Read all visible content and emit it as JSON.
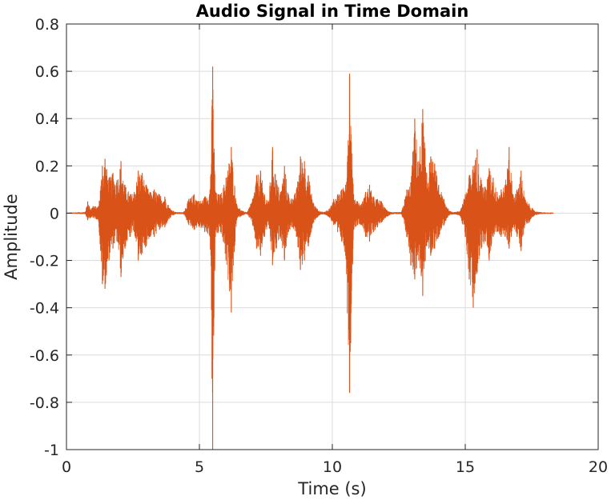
{
  "chart_data": {
    "type": "line",
    "title": "Audio Signal in Time Domain",
    "xlabel": "Time (s)",
    "ylabel": "Amplitude",
    "xlim": [
      0,
      20
    ],
    "ylim": [
      -1,
      0.8
    ],
    "xticks": [
      0,
      5,
      10,
      15,
      20
    ],
    "xtick_labels": [
      "0",
      "5",
      "10",
      "15",
      "20"
    ],
    "yticks": [
      -1,
      -0.8,
      -0.6,
      -0.4,
      -0.2,
      0,
      0.2,
      0.4,
      0.6,
      0.8
    ],
    "ytick_labels": [
      "-1",
      "-0.8",
      "-0.6",
      "-0.4",
      "-0.2",
      "0",
      "0.2",
      "0.4",
      "0.6",
      "0.8"
    ],
    "grid": true,
    "series": [
      {
        "color": "#d95319",
        "x": [
          0.0,
          0.7,
          0.8,
          0.9,
          1.0,
          1.2,
          1.35,
          1.45,
          1.6,
          1.75,
          1.9,
          2.05,
          2.2,
          2.4,
          2.55,
          2.7,
          2.85,
          3.0,
          3.15,
          3.3,
          3.5,
          3.7,
          3.9,
          4.1,
          4.4,
          4.6,
          4.8,
          5.0,
          5.2,
          5.4,
          5.5,
          5.6,
          5.8,
          6.0,
          6.2,
          6.4,
          6.6,
          6.8,
          7.0,
          7.15,
          7.3,
          7.45,
          7.6,
          7.75,
          7.9,
          8.05,
          8.2,
          8.35,
          8.5,
          8.65,
          8.8,
          8.95,
          9.1,
          9.3,
          9.5,
          9.7,
          9.9,
          10.05,
          10.2,
          10.35,
          10.5,
          10.65,
          10.8,
          10.95,
          11.1,
          11.25,
          11.4,
          11.55,
          11.7,
          11.85,
          12.0,
          12.2,
          12.4,
          12.6,
          12.8,
          12.95,
          13.1,
          13.25,
          13.4,
          13.55,
          13.7,
          13.85,
          14.0,
          14.2,
          14.4,
          14.6,
          14.8,
          15.0,
          15.15,
          15.3,
          15.45,
          15.6,
          15.75,
          15.9,
          16.05,
          16.2,
          16.35,
          16.5,
          16.65,
          16.8,
          16.95,
          17.1,
          17.25,
          17.4,
          17.6,
          17.8,
          18.0,
          18.3
        ],
        "upper": [
          0.002,
          0.005,
          0.05,
          0.02,
          0.03,
          0.03,
          0.2,
          0.23,
          0.15,
          0.17,
          0.14,
          0.22,
          0.12,
          0.08,
          0.09,
          0.18,
          0.17,
          0.12,
          0.09,
          0.1,
          0.08,
          0.07,
          0.02,
          0.005,
          0.004,
          0.06,
          0.08,
          0.05,
          0.07,
          0.1,
          0.62,
          0.09,
          0.08,
          0.15,
          0.28,
          0.04,
          0.01,
          0.005,
          0.06,
          0.16,
          0.18,
          0.08,
          0.05,
          0.28,
          0.14,
          0.09,
          0.2,
          0.08,
          0.06,
          0.1,
          0.24,
          0.22,
          0.16,
          0.04,
          0.01,
          0.005,
          0.02,
          0.06,
          0.08,
          0.1,
          0.12,
          0.59,
          0.08,
          0.05,
          0.04,
          0.09,
          0.12,
          0.07,
          0.06,
          0.05,
          0.02,
          0.005,
          0.004,
          0.005,
          0.1,
          0.13,
          0.4,
          0.22,
          0.44,
          0.17,
          0.24,
          0.21,
          0.12,
          0.06,
          0.01,
          0.005,
          0.01,
          0.08,
          0.16,
          0.2,
          0.27,
          0.14,
          0.11,
          0.19,
          0.15,
          0.09,
          0.1,
          0.12,
          0.28,
          0.08,
          0.1,
          0.18,
          0.06,
          0.04,
          0.01,
          0.005,
          0.003,
          0.002
        ],
        "lower": [
          -0.002,
          -0.004,
          -0.03,
          -0.02,
          -0.02,
          -0.03,
          -0.3,
          -0.32,
          -0.2,
          -0.15,
          -0.12,
          -0.27,
          -0.15,
          -0.1,
          -0.08,
          -0.2,
          -0.17,
          -0.14,
          -0.1,
          -0.1,
          -0.07,
          -0.06,
          -0.02,
          -0.004,
          -0.004,
          -0.05,
          -0.07,
          -0.06,
          -0.08,
          -0.1,
          -1.0,
          -0.1,
          -0.08,
          -0.2,
          -0.42,
          -0.03,
          -0.01,
          -0.004,
          -0.05,
          -0.15,
          -0.18,
          -0.1,
          -0.05,
          -0.22,
          -0.15,
          -0.1,
          -0.2,
          -0.08,
          -0.06,
          -0.1,
          -0.24,
          -0.2,
          -0.14,
          -0.04,
          -0.01,
          -0.005,
          -0.02,
          -0.05,
          -0.08,
          -0.12,
          -0.18,
          -0.76,
          -0.07,
          -0.05,
          -0.05,
          -0.1,
          -0.12,
          -0.08,
          -0.06,
          -0.04,
          -0.02,
          -0.005,
          -0.004,
          -0.005,
          -0.1,
          -0.22,
          -0.28,
          -0.2,
          -0.35,
          -0.14,
          -0.18,
          -0.15,
          -0.1,
          -0.05,
          -0.01,
          -0.005,
          -0.01,
          -0.1,
          -0.28,
          -0.4,
          -0.25,
          -0.15,
          -0.12,
          -0.2,
          -0.1,
          -0.08,
          -0.1,
          -0.1,
          -0.15,
          -0.06,
          -0.1,
          -0.16,
          -0.05,
          -0.04,
          -0.01,
          -0.004,
          -0.003,
          -0.002
        ]
      }
    ]
  }
}
